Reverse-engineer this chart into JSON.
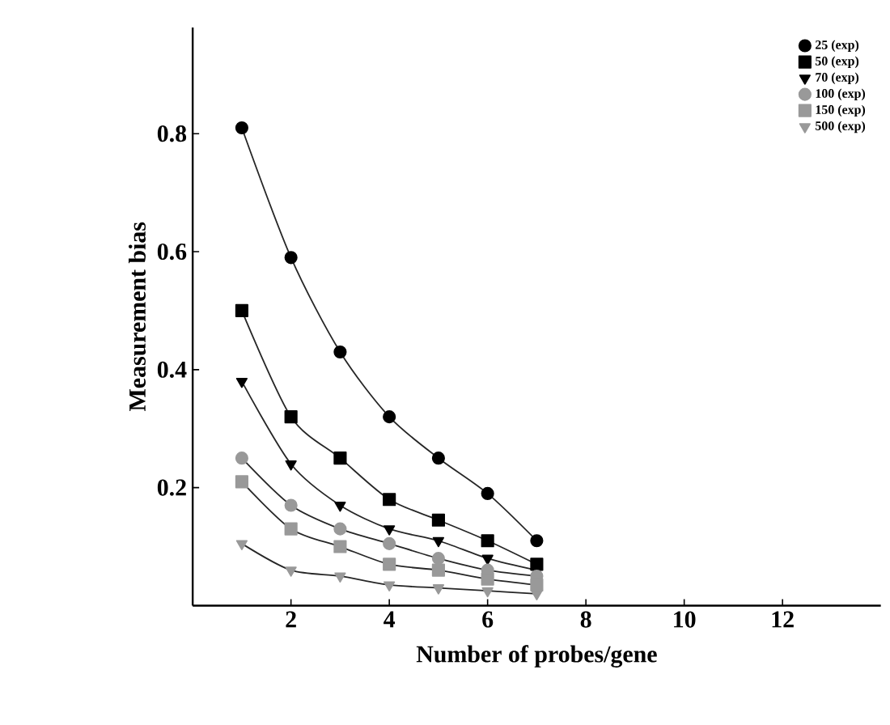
{
  "chart_data": {
    "type": "line",
    "xlabel": "Number of probes/gene",
    "ylabel": "Measurement bias",
    "x": [
      1,
      2,
      3,
      4,
      5,
      6,
      7
    ],
    "xlim": [
      0,
      14
    ],
    "ylim": [
      0,
      0.98
    ],
    "xticks": [
      2,
      4,
      6,
      8,
      10,
      12
    ],
    "yticks": [
      0.2,
      0.4,
      0.6,
      0.8
    ],
    "legend": "top right",
    "line_style": "solid",
    "series": [
      {
        "name": "25 (exp)",
        "color": "#000000",
        "marker": "circle",
        "values": [
          0.81,
          0.59,
          0.43,
          0.32,
          0.25,
          0.19,
          0.11
        ]
      },
      {
        "name": "50 (exp)",
        "color": "#000000",
        "marker": "square",
        "values": [
          0.5,
          0.32,
          0.25,
          0.18,
          0.145,
          0.11,
          0.07
        ]
      },
      {
        "name": "70 (exp)",
        "color": "#000000",
        "marker": "triangle",
        "values": [
          0.38,
          0.24,
          0.17,
          0.13,
          0.11,
          0.08,
          0.06
        ]
      },
      {
        "name": "100 (exp)",
        "color": "#999999",
        "marker": "circle",
        "values": [
          0.25,
          0.17,
          0.13,
          0.105,
          0.08,
          0.06,
          0.05
        ]
      },
      {
        "name": "150 (exp)",
        "color": "#999999",
        "marker": "square",
        "values": [
          0.21,
          0.13,
          0.1,
          0.07,
          0.06,
          0.045,
          0.035
        ]
      },
      {
        "name": "500 (exp)",
        "color": "#999999",
        "marker": "triangle",
        "values": [
          0.105,
          0.06,
          0.05,
          0.035,
          0.03,
          0.025,
          0.02
        ]
      }
    ]
  }
}
